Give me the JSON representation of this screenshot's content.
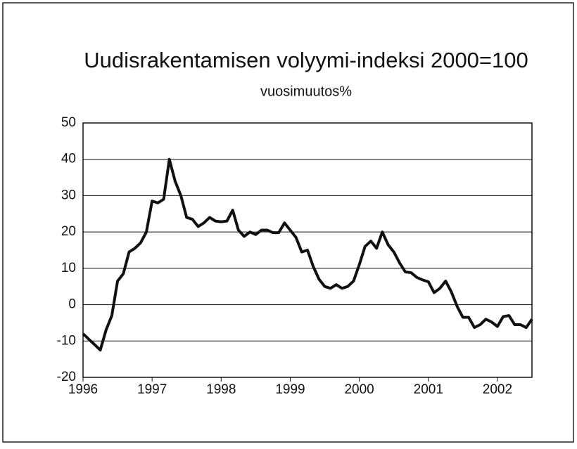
{
  "chart_data": {
    "type": "line",
    "title": "Uudisrakentamisen volyymi-indeksi 2000=100",
    "subtitle": "vuosimuutos%",
    "x": [
      1996,
      1996.083,
      1996.167,
      1996.25,
      1996.333,
      1996.417,
      1996.5,
      1996.583,
      1996.667,
      1996.75,
      1996.833,
      1996.917,
      1997,
      1997.083,
      1997.167,
      1997.25,
      1997.333,
      1997.417,
      1997.5,
      1997.583,
      1997.667,
      1997.75,
      1997.833,
      1997.917,
      1998,
      1998.083,
      1998.167,
      1998.25,
      1998.333,
      1998.417,
      1998.5,
      1998.583,
      1998.667,
      1998.75,
      1998.833,
      1998.917,
      1999,
      1999.083,
      1999.167,
      1999.25,
      1999.333,
      1999.417,
      1999.5,
      1999.583,
      1999.667,
      1999.75,
      1999.833,
      1999.917,
      2000,
      2000.083,
      2000.167,
      2000.25,
      2000.333,
      2000.417,
      2000.5,
      2000.583,
      2000.667,
      2000.75,
      2000.833,
      2000.917,
      2001,
      2001.083,
      2001.167,
      2001.25,
      2001.333,
      2001.417,
      2001.5,
      2001.583,
      2001.667,
      2001.75,
      2001.833,
      2001.917,
      2002,
      2002.083,
      2002.167,
      2002.25,
      2002.333,
      2002.417,
      2002.5
    ],
    "series": [
      {
        "color": "#111111",
        "values": [
          -8,
          -9.5,
          -11,
          -12.5,
          -7,
          -3,
          6.5,
          8.5,
          14.5,
          15.5,
          17,
          20,
          28.5,
          28,
          29,
          40,
          34,
          30,
          24,
          23.5,
          21.5,
          22.5,
          24,
          23,
          22.8,
          23,
          26,
          20.5,
          18.8,
          20,
          19.3,
          20.5,
          20.5,
          19.8,
          19.8,
          22.5,
          20.5,
          18.5,
          14.5,
          15,
          10.5,
          7,
          5,
          4.5,
          5.5,
          4.5,
          5,
          6.5,
          11,
          16,
          17.5,
          15.5,
          20,
          16.5,
          14.5,
          11.5,
          9,
          8.8,
          7.5,
          6.8,
          6.3,
          3.3,
          4.5,
          6.5,
          3.5,
          -0.5,
          -3.5,
          -3.5,
          -6.3,
          -5.5,
          -4,
          -4.8,
          -6,
          -3.3,
          -3,
          -5.5,
          -5.5,
          -6.3,
          -4
        ]
      }
    ],
    "xlim": [
      1996,
      2002.5
    ],
    "xticks": [
      1996,
      1997,
      1998,
      1999,
      2000,
      2001,
      2002
    ],
    "ylim": [
      -20,
      50
    ],
    "yticks": [
      -20,
      -10,
      0,
      10,
      20,
      30,
      40,
      50
    ],
    "grid": true
  }
}
